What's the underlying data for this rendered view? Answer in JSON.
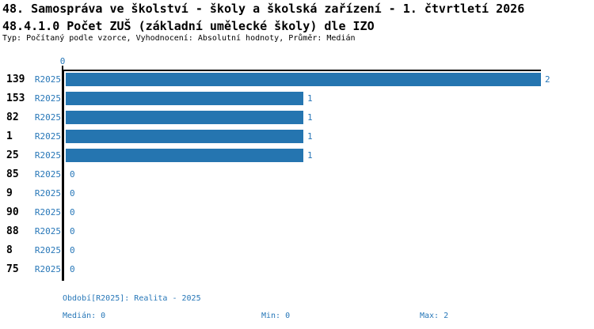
{
  "header": {
    "title_line1": "48. Samospráva ve školství - školy a školská zařízení - 1. čtvrtletí 2026",
    "title_line2": "48.4.1.0 Počet ZUŠ (základní umělecké školy) dle IZO",
    "subtitle": "Typ: Počítaný podle vzorce, Vyhodnocení: Absolutní hodnoty, Průměr: Medián"
  },
  "colors": {
    "bar": "#2575b0",
    "blue_text": "#2777b8",
    "axis": "#000000"
  },
  "chart_data": {
    "type": "bar",
    "orientation": "horizontal",
    "title": "48.4.1.0 Počet ZUŠ (základní umělecké školy) dle IZO",
    "series_label": "R2025",
    "axis_top_tick": "0",
    "xlim": [
      0,
      2
    ],
    "grid": false,
    "categories": [
      "139",
      "153",
      "82",
      "1",
      "25",
      "85",
      "9",
      "90",
      "88",
      "8",
      "75"
    ],
    "values": [
      2,
      1,
      1,
      1,
      1,
      0,
      0,
      0,
      0,
      0,
      0
    ],
    "stats": {
      "median": 0,
      "min": 0,
      "max": 2
    }
  },
  "footer": {
    "period": "Období[R2025]: Realita - 2025",
    "median": "Medián: 0",
    "min": "Min: 0",
    "max": "Max: 2"
  }
}
